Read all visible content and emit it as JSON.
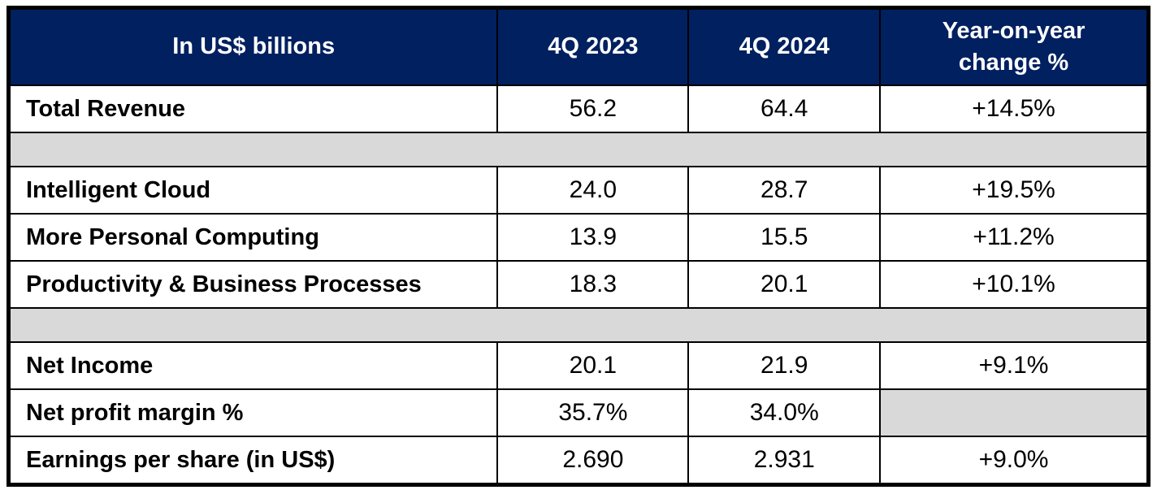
{
  "table": {
    "colors": {
      "header_bg": "#002060",
      "header_text": "#FFFFFF",
      "spacer_bg": "#D9D9D9",
      "border": "#000000",
      "body_text": "#000000"
    },
    "header": {
      "metric": "In US$ billions",
      "q4_2023": "4Q 2023",
      "q4_2024": "4Q 2024",
      "yoy": "Year-on-year\nchange %"
    },
    "rows": [
      {
        "label": "Total Revenue",
        "v2023": "56.2",
        "v2024": "64.4",
        "yoy": "+14.5%"
      },
      {
        "label": "Intelligent Cloud",
        "v2023": "24.0",
        "v2024": "28.7",
        "yoy": "+19.5%"
      },
      {
        "label": "More Personal Computing",
        "v2023": "13.9",
        "v2024": "15.5",
        "yoy": "+11.2%"
      },
      {
        "label": "Productivity & Business Processes",
        "v2023": "18.3",
        "v2024": "20.1",
        "yoy": "+10.1%"
      },
      {
        "label": "Net Income",
        "v2023": "20.1",
        "v2024": "21.9",
        "yoy": "+9.1%"
      },
      {
        "label": "Net profit margin %",
        "v2023": "35.7%",
        "v2024": "34.0%",
        "yoy": ""
      },
      {
        "label": "Earnings per share (in US$)",
        "v2023": "2.690",
        "v2024": "2.931",
        "yoy": "+9.0%"
      }
    ]
  },
  "chart_data": {
    "type": "table",
    "title": "In US$ billions",
    "columns": [
      "In US$ billions",
      "4Q 2023",
      "4Q 2024",
      "Year-on-year change %"
    ],
    "rows": [
      [
        "Total Revenue",
        56.2,
        64.4,
        "+14.5%"
      ],
      [
        "Intelligent Cloud",
        24.0,
        28.7,
        "+19.5%"
      ],
      [
        "More Personal Computing",
        13.9,
        15.5,
        "+11.2%"
      ],
      [
        "Productivity & Business Processes",
        18.3,
        20.1,
        "+10.1%"
      ],
      [
        "Net Income",
        20.1,
        21.9,
        "+9.1%"
      ],
      [
        "Net profit margin %",
        "35.7%",
        "34.0%",
        null
      ],
      [
        "Earnings per share (in US$)",
        2.69,
        2.931,
        "+9.0%"
      ]
    ],
    "notes": "Gray spacer rows separate Total Revenue, segment breakdown, and profitability sections; Net profit margin YoY cell is blank (gray)."
  }
}
